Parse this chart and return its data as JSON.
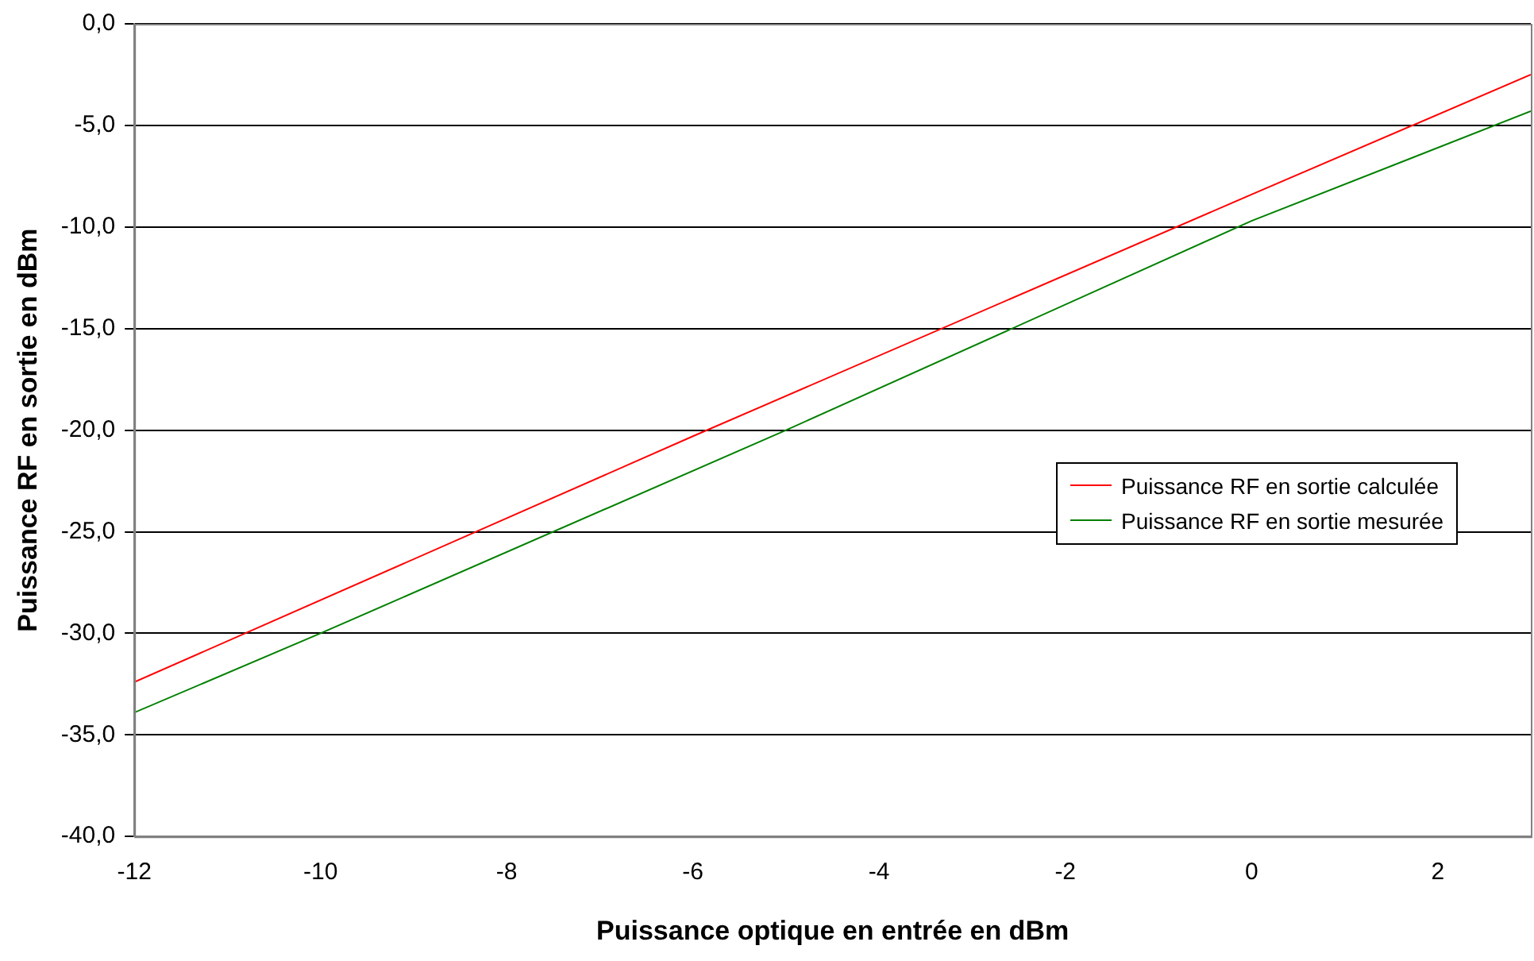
{
  "chart_data": {
    "type": "line",
    "xlabel": "Puissance optique en entrée en dBm",
    "ylabel": "Puissance RF en sortie en dBm",
    "xlim": [
      -12,
      3
    ],
    "xticks": [
      -12,
      -10,
      -8,
      -6,
      -4,
      -2,
      0,
      2
    ],
    "ylim": [
      -40,
      0
    ],
    "yticks": [
      {
        "value": -40,
        "label": "-40,0"
      },
      {
        "value": -35,
        "label": "-35,0"
      },
      {
        "value": -30,
        "label": "-30,0"
      },
      {
        "value": -25,
        "label": "-25,0"
      },
      {
        "value": -20,
        "label": "-20,0"
      },
      {
        "value": -15,
        "label": "-15,0"
      },
      {
        "value": -10,
        "label": "-10,0"
      },
      {
        "value": -5,
        "label": "-5,0"
      },
      {
        "value": 0,
        "label": "0,0"
      }
    ],
    "grid": "y",
    "legend": "right",
    "marker": "none",
    "line_style": "solid",
    "series": [
      {
        "name": "Puissance RF en sortie calculée",
        "color": "#ff0000",
        "x": [
          -12,
          -6,
          0,
          3
        ],
        "values": [
          -32.4,
          -20.3,
          -8.4,
          -2.5
        ]
      },
      {
        "name": "Puissance RF en sortie mesurée",
        "color": "#008000",
        "x": [
          -12,
          -10,
          -5,
          0,
          3
        ],
        "values": [
          -33.9,
          -30.0,
          -20.0,
          -9.7,
          -4.3
        ]
      }
    ]
  }
}
